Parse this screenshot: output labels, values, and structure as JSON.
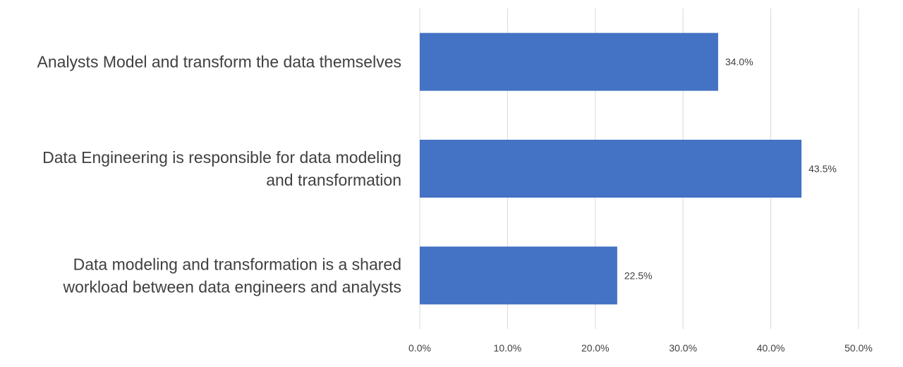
{
  "chart_data": {
    "type": "bar",
    "orientation": "horizontal",
    "categories": [
      [
        "Analysts Model and transform the data themselves"
      ],
      [
        "Data Engineering is responsible for data modeling",
        "and transformation"
      ],
      [
        "Data modeling and transformation is a shared",
        "workload between data engineers and analysts"
      ]
    ],
    "values": [
      34.0,
      43.5,
      22.5
    ],
    "data_labels": [
      "34.0%",
      "43.5%",
      "22.5%"
    ],
    "xlim": [
      0,
      50
    ],
    "ticks": [
      0,
      10,
      20,
      30,
      40,
      50
    ],
    "tick_labels": [
      "0.0%",
      "10.0%",
      "20.0%",
      "30.0%",
      "40.0%",
      "50.0%"
    ],
    "grid": true,
    "bar_color": "#4472c4"
  }
}
